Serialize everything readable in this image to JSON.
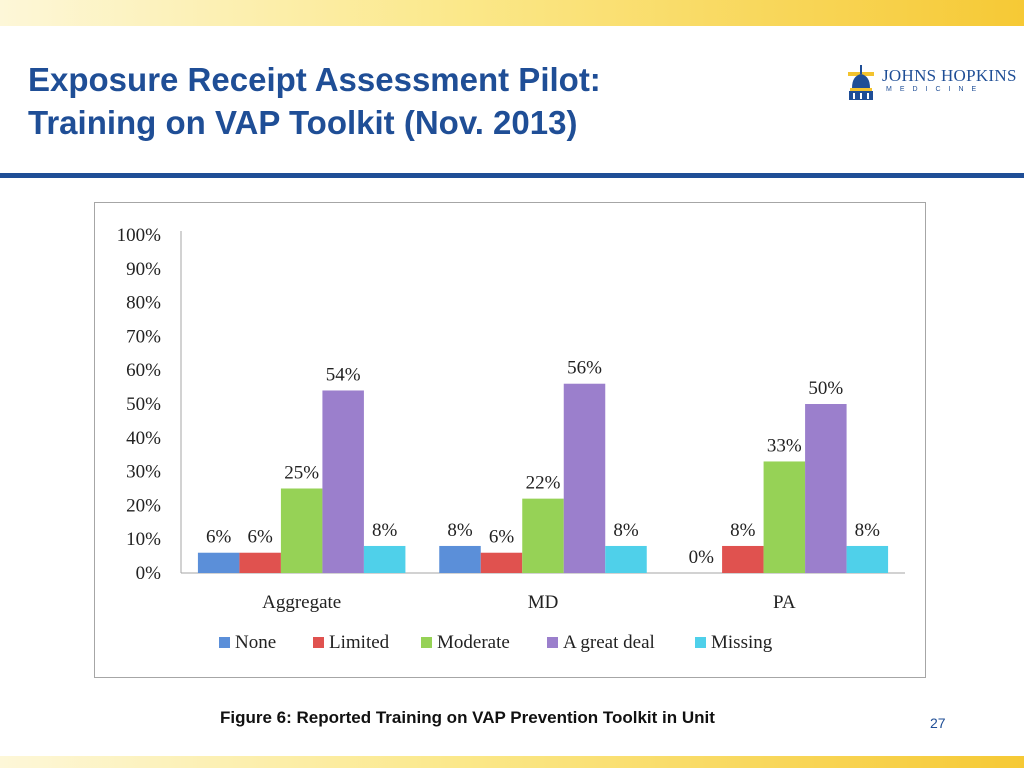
{
  "slide": {
    "title_line1": "Exposure Receipt Assessment Pilot:",
    "title_line2": "Training on VAP Toolkit (Nov. 2013)",
    "logo_text": "JOHNS HOPKINS",
    "logo_sub": "MEDICINE",
    "caption": "Figure 6: Reported Training on VAP Prevention Toolkit in Unit",
    "page_number": "27"
  },
  "colors": {
    "title": "#1f4e96",
    "band": "#f6c935"
  },
  "chart_data": {
    "type": "bar",
    "categories": [
      "Aggregate",
      "MD",
      "PA"
    ],
    "series": [
      {
        "name": "None",
        "color": "#5b8fd9",
        "values": [
          6,
          8,
          0
        ],
        "labels": [
          "6%",
          "8%",
          "0%"
        ]
      },
      {
        "name": "Limited",
        "color": "#e0524f",
        "values": [
          6,
          6,
          8
        ],
        "labels": [
          "6%",
          "6%",
          "8%"
        ]
      },
      {
        "name": "Moderate",
        "color": "#96d256",
        "values": [
          25,
          22,
          33
        ],
        "labels": [
          "25%",
          "22%",
          "33%"
        ]
      },
      {
        "name": "A great deal",
        "color": "#9b7fcc",
        "values": [
          54,
          56,
          50
        ],
        "labels": [
          "54%",
          "56%",
          "50%"
        ]
      },
      {
        "name": "Missing",
        "color": "#4fd0ea",
        "values": [
          8,
          8,
          8
        ],
        "labels": [
          "8%",
          "8%",
          "8%"
        ]
      }
    ],
    "y_ticks": [
      "0%",
      "10%",
      "20%",
      "30%",
      "40%",
      "50%",
      "60%",
      "70%",
      "80%",
      "90%",
      "100%"
    ],
    "ylim": [
      0,
      100
    ],
    "legend_position": "bottom",
    "grid": false
  }
}
